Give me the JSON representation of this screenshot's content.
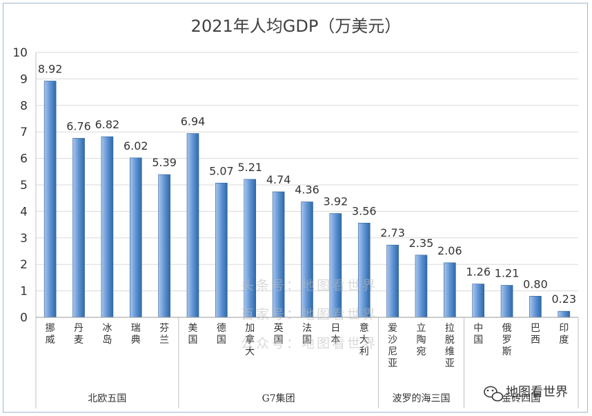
{
  "chart_data": {
    "type": "bar",
    "title": "2021年人均GDP（万美元）",
    "categories": [
      "挪威",
      "丹麦",
      "冰岛",
      "瑞典",
      "芬兰",
      "美国",
      "德国",
      "加拿大",
      "英国",
      "法国",
      "日本",
      "意大利",
      "爱沙尼亚",
      "立陶宛",
      "拉脱维亚",
      "中国",
      "俄罗斯",
      "巴西",
      "印度"
    ],
    "values": [
      8.92,
      6.76,
      6.82,
      6.02,
      5.39,
      6.94,
      5.07,
      5.21,
      4.74,
      4.36,
      3.92,
      3.56,
      2.73,
      2.35,
      2.06,
      1.26,
      1.21,
      0.8,
      0.23
    ],
    "value_labels": [
      "8.92",
      "6.76",
      "6.82",
      "6.02",
      "5.39",
      "6.94",
      "5.07",
      "5.21",
      "4.74",
      "4.36",
      "3.92",
      "3.56",
      "2.73",
      "2.35",
      "2.06",
      "1.26",
      "1.21",
      "0.80",
      "0.23"
    ],
    "groups": [
      {
        "name": "北欧五国",
        "start": 0,
        "end": 4
      },
      {
        "name": "G7集团",
        "start": 5,
        "end": 11
      },
      {
        "name": "波罗的海三国",
        "start": 12,
        "end": 14
      },
      {
        "name": "金砖四国",
        "start": 15,
        "end": 18
      }
    ],
    "yticks": [
      "0",
      "1",
      "2",
      "3",
      "4",
      "5",
      "6",
      "7",
      "8",
      "9",
      "10"
    ],
    "ylim": [
      0,
      10
    ],
    "grid": true,
    "bar_color_light": "#a9c6ee",
    "bar_color_dark": "#2f6aa8",
    "grid_color": "#d9d9d9"
  },
  "watermark": {
    "lines": [
      "头条号：地图看世界",
      "百家号：地图看世界",
      "公众号：地图看世界"
    ]
  },
  "brand": {
    "icon": "wechat-icon",
    "text": "地图看世界"
  }
}
